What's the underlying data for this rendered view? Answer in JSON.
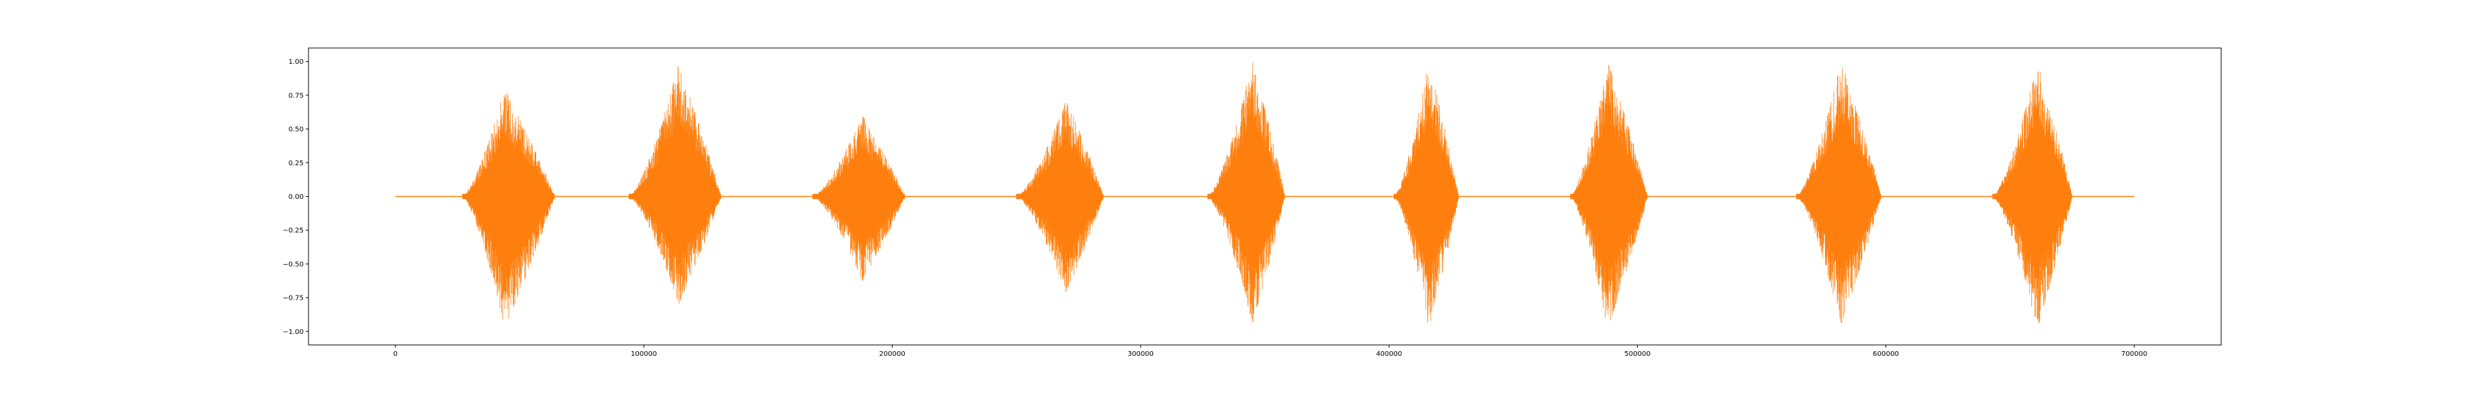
{
  "chart_data": {
    "type": "line",
    "title": "",
    "xlabel": "",
    "ylabel": "",
    "xlim": [
      -35000,
      735000
    ],
    "ylim": [
      -1.1,
      1.1
    ],
    "grid": false,
    "legend": "none",
    "x_ticks": [
      0,
      100000,
      200000,
      300000,
      400000,
      500000,
      600000,
      700000
    ],
    "x_tick_labels": [
      "0",
      "100000",
      "200000",
      "300000",
      "400000",
      "500000",
      "600000",
      "700000"
    ],
    "y_ticks": [
      1.0,
      0.75,
      0.5,
      0.25,
      0.0,
      -0.25,
      -0.5,
      -0.75,
      -1.0
    ],
    "y_tick_labels": [
      "1.00",
      "0.75",
      "0.50",
      "0.25",
      "0.00",
      "−0.25",
      "−0.50",
      "−0.75",
      "−1.00"
    ],
    "series": [
      {
        "color": "#ff7f0e",
        "x_range": [
          0,
          700000
        ],
        "baseline": 0.0,
        "bursts": [
          {
            "start": 27000,
            "end": 64000,
            "peak_x": 44000,
            "max": 0.8,
            "min": -0.98
          },
          {
            "start": 94000,
            "end": 131000,
            "peak_x": 114000,
            "max": 0.98,
            "min": -0.8
          },
          {
            "start": 168000,
            "end": 205000,
            "peak_x": 188000,
            "max": 0.6,
            "min": -0.63
          },
          {
            "start": 250000,
            "end": 285000,
            "peak_x": 270000,
            "max": 0.72,
            "min": -0.72
          },
          {
            "start": 327000,
            "end": 358000,
            "peak_x": 345000,
            "max": 1.0,
            "min": -0.95
          },
          {
            "start": 402000,
            "end": 428000,
            "peak_x": 416000,
            "max": 1.0,
            "min": -0.98
          },
          {
            "start": 473000,
            "end": 504000,
            "peak_x": 488000,
            "max": 1.0,
            "min": -0.98
          },
          {
            "start": 564000,
            "end": 598000,
            "peak_x": 582000,
            "max": 1.0,
            "min": -0.95
          },
          {
            "start": 643000,
            "end": 675000,
            "peak_x": 661000,
            "max": 1.0,
            "min": -0.98
          }
        ]
      }
    ]
  }
}
